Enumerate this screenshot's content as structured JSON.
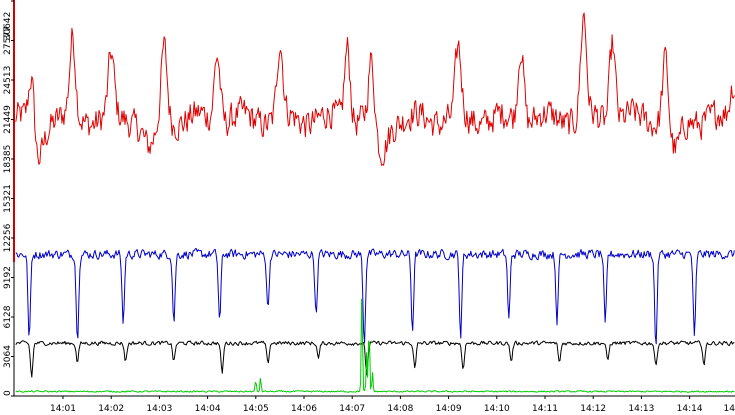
{
  "colors": {
    "background": "#ffffff",
    "axis": "#000000",
    "y_axis_accent": "#d00000",
    "series_red": "#e00000",
    "series_blue": "#0000c8",
    "series_black": "#000000",
    "series_green": "#00cc00"
  },
  "chart_data": {
    "type": "line",
    "title": "",
    "xlabel": "",
    "ylabel": "",
    "grid": false,
    "legend": "none",
    "ylim": [
      0,
      30642
    ],
    "y_ticks": [
      "0",
      "3064",
      "6128",
      "9192",
      "12256",
      "15321",
      "18385",
      "21449",
      "24513",
      "27577",
      "30642"
    ],
    "x_ticks": [
      "14:01",
      "14:02",
      "14:03",
      "14:04",
      "14:05",
      "14:06",
      "14:07",
      "14:08",
      "14:09",
      "14:10",
      "14:11",
      "14:12",
      "14:13",
      "14:14",
      "14"
    ],
    "x_range_minutes": [
      14.0,
      14.95
    ],
    "series": [
      {
        "color_key": "series_red",
        "baseline": 21500,
        "noise": 1600,
        "wave_period_min": 0.9,
        "wave_amp": 1200,
        "peaks": [
          [
            0.35,
            27500
          ],
          [
            1.2,
            28500
          ],
          [
            2.0,
            27000
          ],
          [
            3.1,
            28000
          ],
          [
            4.2,
            27800
          ],
          [
            5.5,
            28200
          ],
          [
            6.9,
            28400
          ],
          [
            7.4,
            27000
          ],
          [
            9.2,
            27600
          ],
          [
            10.5,
            28500
          ],
          [
            11.8,
            30642
          ],
          [
            12.4,
            28900
          ],
          [
            13.5,
            27800
          ],
          [
            14.9,
            24700
          ]
        ],
        "troughs": [
          [
            0.45,
            17300
          ],
          [
            2.8,
            18500
          ],
          [
            7.6,
            18200
          ],
          [
            13.7,
            18000
          ]
        ]
      },
      {
        "color_key": "series_blue",
        "baseline": 11000,
        "noise": 500,
        "dip_depth": 6400,
        "dip_times": [
          0.3,
          1.3,
          2.25,
          3.3,
          4.25,
          5.25,
          6.25,
          7.25,
          8.25,
          9.25,
          10.25,
          11.25,
          12.25,
          13.3,
          14.1
        ],
        "dip_depths": [
          6700,
          6700,
          5300,
          5200,
          5200,
          4300,
          4700,
          6900,
          5900,
          6400,
          5100,
          5100,
          5600,
          7200,
          6600
        ]
      },
      {
        "color_key": "series_black",
        "baseline": 4100,
        "noise": 220,
        "dip_depth": 1900,
        "dip_times": [
          0.35,
          1.3,
          2.3,
          3.3,
          4.3,
          5.25,
          6.3,
          7.3,
          8.3,
          9.3,
          10.3,
          11.3,
          12.3,
          13.3,
          14.3
        ],
        "dip_depths": [
          2600,
          1500,
          1400,
          1400,
          2300,
          1600,
          1200,
          2400,
          2000,
          2000,
          1400,
          1500,
          1400,
          1800,
          1700
        ]
      },
      {
        "color_key": "series_green",
        "baseline": 350,
        "noise": 80,
        "spikes": [
          [
            5.0,
            900
          ],
          [
            5.1,
            1100
          ],
          [
            7.2,
            8000
          ],
          [
            7.3,
            3000
          ],
          [
            7.35,
            5500
          ],
          [
            7.42,
            1500
          ]
        ]
      }
    ]
  }
}
